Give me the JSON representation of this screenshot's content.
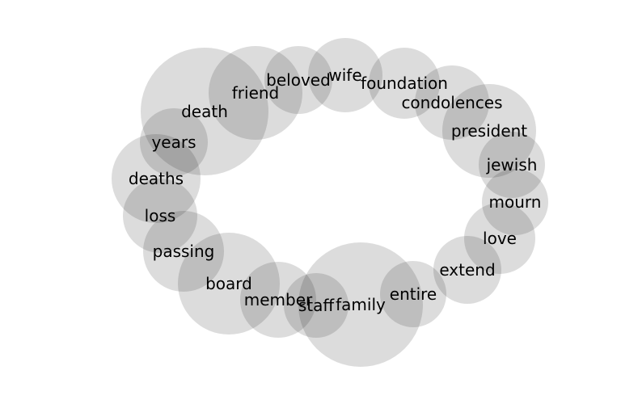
{
  "diagram": {
    "type": "word-bubble-cloud",
    "bubble_color": "#d4d4d4",
    "text_color": "#000000",
    "words": [
      {
        "label": "death"
      },
      {
        "label": "friend"
      },
      {
        "label": "beloved"
      },
      {
        "label": "wife"
      },
      {
        "label": "foundation"
      },
      {
        "label": "condolences"
      },
      {
        "label": "president"
      },
      {
        "label": "jewish"
      },
      {
        "label": "mourn"
      },
      {
        "label": "love"
      },
      {
        "label": "extend"
      },
      {
        "label": "entire"
      },
      {
        "label": "family"
      },
      {
        "label": "staff"
      },
      {
        "label": "member"
      },
      {
        "label": "board"
      },
      {
        "label": "passing"
      },
      {
        "label": "loss"
      },
      {
        "label": "deaths"
      },
      {
        "label": "years"
      }
    ]
  }
}
